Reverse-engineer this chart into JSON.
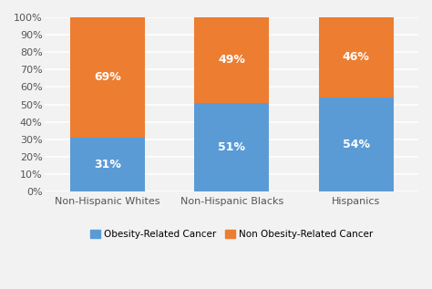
{
  "categories": [
    "Non-Hispanic Whites",
    "Non-Hispanic Blacks",
    "Hispanics"
  ],
  "obesity_related": [
    31,
    51,
    54
  ],
  "non_obesity_related": [
    69,
    49,
    46
  ],
  "obesity_color": "#5B9BD5",
  "non_obesity_color": "#ED7D31",
  "label_color": "#FFFFFF",
  "background_color": "#F2F2F2",
  "plot_bg_color": "#F2F2F2",
  "grid_color": "#FFFFFF",
  "ylabel_ticks": [
    "0%",
    "10%",
    "20%",
    "30%",
    "40%",
    "50%",
    "60%",
    "70%",
    "80%",
    "90%",
    "100%"
  ],
  "legend_labels": [
    "Obesity-Related Cancer",
    "Non Obesity-Related Cancer"
  ],
  "bar_width": 0.6,
  "label_fontsize": 9,
  "tick_fontsize": 8,
  "legend_fontsize": 7.5
}
